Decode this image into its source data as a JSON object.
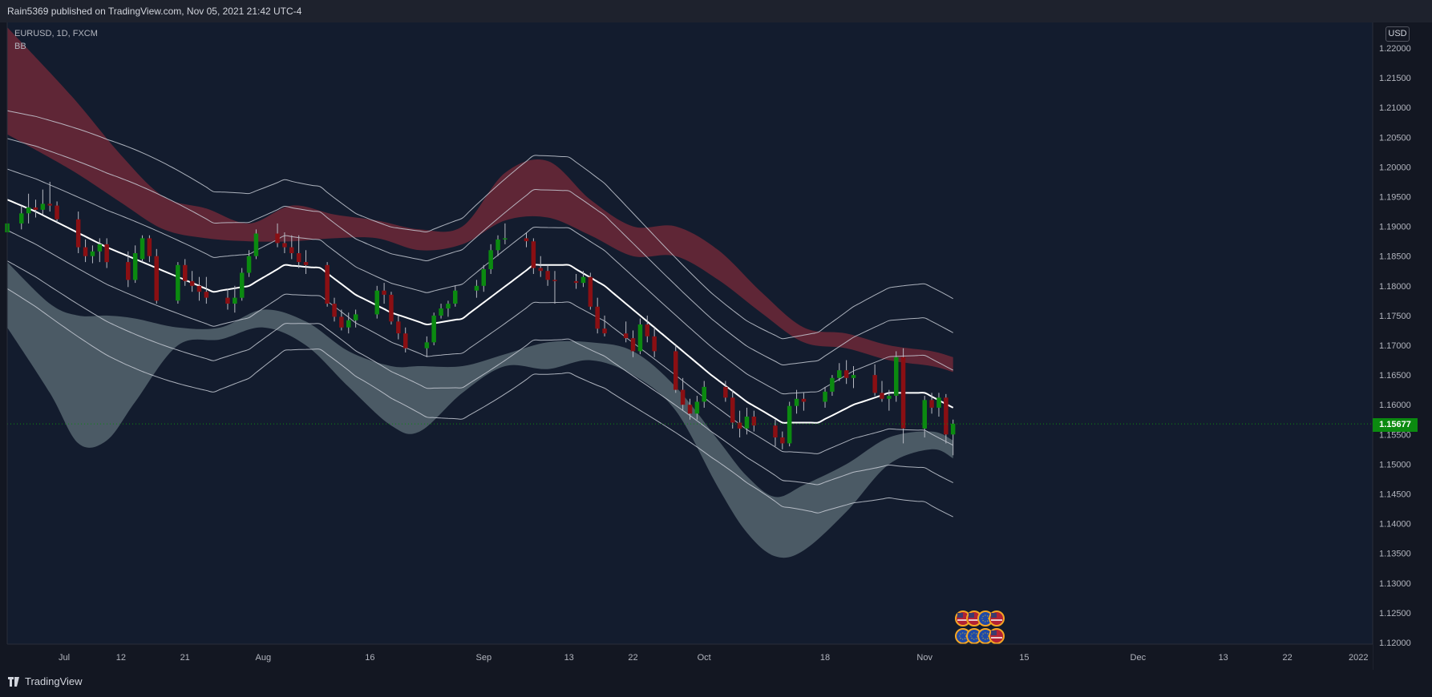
{
  "header": {
    "published": "Rain5369 published on TradingView.com, Nov 05, 2021 21:42 UTC-4"
  },
  "legend": {
    "symbol": "EURUSD, 1D, FXCM",
    "indicator": "BB"
  },
  "footer": {
    "brand": "TradingView"
  },
  "colors": {
    "up": "#0b8a10",
    "down": "#8a0f13",
    "background": "#131c2e",
    "upper_band": "#7a2a3a",
    "lower_band": "#5f6f78",
    "basis": "#ffffff"
  },
  "chart_data": {
    "type": "candlestick",
    "title": "EURUSD, 1D, FXCM",
    "currency": "USD",
    "last_price": "1.15677",
    "y_ticks": [
      "1.22000",
      "1.21500",
      "1.21000",
      "1.20500",
      "1.20000",
      "1.19500",
      "1.19000",
      "1.18500",
      "1.18000",
      "1.17500",
      "1.17000",
      "1.16500",
      "1.16000",
      "1.15500",
      "1.15000",
      "1.14500",
      "1.14000",
      "1.13500",
      "1.13000",
      "1.12500",
      "1.12000"
    ],
    "ylim": [
      1.12,
      1.22
    ],
    "x_labels": [
      {
        "label": "Jul",
        "day": 4
      },
      {
        "label": "12",
        "day": 12
      },
      {
        "label": "21",
        "day": 21
      },
      {
        "label": "Aug",
        "day": 32
      },
      {
        "label": "16",
        "day": 47
      },
      {
        "label": "Sep",
        "day": 63
      },
      {
        "label": "13",
        "day": 75
      },
      {
        "label": "22",
        "day": 84
      },
      {
        "label": "Oct",
        "day": 94
      },
      {
        "label": "18",
        "day": 111
      },
      {
        "label": "Nov",
        "day": 125
      },
      {
        "label": "15",
        "day": 139
      },
      {
        "label": "Dec",
        "day": 155
      },
      {
        "label": "13",
        "day": 167
      },
      {
        "label": "22",
        "day": 176
      },
      {
        "label": "2022",
        "day": 186
      }
    ],
    "xlim": [
      -4,
      188
    ],
    "candles": [
      [
        -4,
        1.189,
        1.1915,
        1.1885,
        1.1905
      ],
      [
        -2,
        1.1905,
        1.1935,
        1.1895,
        1.1922
      ],
      [
        -1,
        1.1922,
        1.1955,
        1.1905,
        1.1932
      ],
      [
        0,
        1.1932,
        1.1945,
        1.1915,
        1.1928
      ],
      [
        1,
        1.1928,
        1.1962,
        1.192,
        1.1938
      ],
      [
        2,
        1.1938,
        1.1975,
        1.1925,
        1.1935
      ],
      [
        3,
        1.1935,
        1.1942,
        1.1905,
        1.1912
      ],
      [
        6,
        1.1912,
        1.1925,
        1.1855,
        1.1865
      ],
      [
        7,
        1.1865,
        1.1878,
        1.184,
        1.185
      ],
      [
        8,
        1.185,
        1.1868,
        1.1838,
        1.1858
      ],
      [
        9,
        1.1858,
        1.188,
        1.184,
        1.187
      ],
      [
        10,
        1.187,
        1.188,
        1.183,
        1.184
      ],
      [
        13,
        1.184,
        1.1858,
        1.1798,
        1.181
      ],
      [
        14,
        1.181,
        1.1868,
        1.1805,
        1.1855
      ],
      [
        15,
        1.1845,
        1.1885,
        1.184,
        1.188
      ],
      [
        16,
        1.188,
        1.1885,
        1.184,
        1.185
      ],
      [
        17,
        1.185,
        1.1862,
        1.177,
        1.1775
      ],
      [
        20,
        1.1775,
        1.184,
        1.177,
        1.1835
      ],
      [
        21,
        1.1835,
        1.1845,
        1.18,
        1.1808
      ],
      [
        22,
        1.1808,
        1.1825,
        1.179,
        1.18
      ],
      [
        23,
        1.18,
        1.1815,
        1.1775,
        1.179
      ],
      [
        24,
        1.179,
        1.1815,
        1.177,
        1.178
      ],
      [
        27,
        1.178,
        1.1795,
        1.176,
        1.177
      ],
      [
        28,
        1.177,
        1.18,
        1.1755,
        1.178
      ],
      [
        29,
        1.178,
        1.183,
        1.1775,
        1.1822
      ],
      [
        30,
        1.1822,
        1.186,
        1.1815,
        1.185
      ],
      [
        31,
        1.185,
        1.1895,
        1.1845,
        1.1888
      ],
      [
        34,
        1.1888,
        1.1905,
        1.1865,
        1.1872
      ],
      [
        35,
        1.1872,
        1.189,
        1.1855,
        1.1865
      ],
      [
        36,
        1.1865,
        1.1885,
        1.1845,
        1.1855
      ],
      [
        37,
        1.1855,
        1.1885,
        1.183,
        1.184
      ],
      [
        38,
        1.184,
        1.186,
        1.182,
        1.1835
      ],
      [
        41,
        1.1835,
        1.184,
        1.1765,
        1.177
      ],
      [
        42,
        1.177,
        1.178,
        1.174,
        1.1748
      ],
      [
        43,
        1.1748,
        1.176,
        1.1725,
        1.173
      ],
      [
        44,
        1.173,
        1.1755,
        1.172,
        1.1742
      ],
      [
        45,
        1.1742,
        1.176,
        1.173,
        1.1752
      ],
      [
        48,
        1.1752,
        1.18,
        1.1745,
        1.1792
      ],
      [
        49,
        1.1792,
        1.1805,
        1.177,
        1.1785
      ],
      [
        50,
        1.1785,
        1.179,
        1.1735,
        1.174
      ],
      [
        51,
        1.174,
        1.175,
        1.171,
        1.172
      ],
      [
        52,
        1.172,
        1.173,
        1.1688,
        1.1695
      ],
      [
        55,
        1.1695,
        1.1715,
        1.168,
        1.1705
      ],
      [
        56,
        1.1705,
        1.1755,
        1.17,
        1.175
      ],
      [
        57,
        1.175,
        1.177,
        1.1745,
        1.1762
      ],
      [
        58,
        1.1762,
        1.1775,
        1.1748,
        1.177
      ],
      [
        59,
        1.177,
        1.18,
        1.1765,
        1.1792
      ],
      [
        62,
        1.1792,
        1.181,
        1.178,
        1.18
      ],
      [
        63,
        1.18,
        1.1835,
        1.179,
        1.1828
      ],
      [
        64,
        1.1828,
        1.187,
        1.182,
        1.186
      ],
      [
        65,
        1.186,
        1.1885,
        1.185,
        1.1878
      ],
      [
        66,
        1.1878,
        1.1905,
        1.187,
        1.188
      ],
      [
        69,
        1.188,
        1.189,
        1.1865,
        1.1875
      ],
      [
        70,
        1.1875,
        1.188,
        1.182,
        1.183
      ],
      [
        71,
        1.183,
        1.185,
        1.1815,
        1.1825
      ],
      [
        72,
        1.1825,
        1.1835,
        1.18,
        1.181
      ],
      [
        73,
        1.181,
        1.1825,
        1.177,
        1.1808
      ],
      [
        76,
        1.1808,
        1.182,
        1.1795,
        1.1805
      ],
      [
        77,
        1.1805,
        1.1825,
        1.1798,
        1.1815
      ],
      [
        78,
        1.1815,
        1.1822,
        1.176,
        1.1765
      ],
      [
        79,
        1.1765,
        1.178,
        1.172,
        1.1728
      ],
      [
        80,
        1.1728,
        1.175,
        1.1715,
        1.172
      ],
      [
        83,
        1.172,
        1.174,
        1.1705,
        1.1712
      ],
      [
        84,
        1.1712,
        1.1725,
        1.168,
        1.169
      ],
      [
        85,
        1.169,
        1.1745,
        1.1685,
        1.1735
      ],
      [
        86,
        1.1735,
        1.175,
        1.1705,
        1.1715
      ],
      [
        87,
        1.1715,
        1.173,
        1.168,
        1.169
      ],
      [
        90,
        1.169,
        1.17,
        1.162,
        1.1625
      ],
      [
        91,
        1.1625,
        1.1645,
        1.159,
        1.16
      ],
      [
        92,
        1.16,
        1.161,
        1.1575,
        1.1585
      ],
      [
        93,
        1.1585,
        1.1615,
        1.1575,
        1.1605
      ],
      [
        94,
        1.1605,
        1.164,
        1.1595,
        1.163
      ],
      [
        97,
        1.163,
        1.164,
        1.1605,
        1.1612
      ],
      [
        98,
        1.1612,
        1.1625,
        1.156,
        1.157
      ],
      [
        99,
        1.157,
        1.159,
        1.1545,
        1.156
      ],
      [
        100,
        1.156,
        1.1595,
        1.155,
        1.158
      ],
      [
        101,
        1.158,
        1.159,
        1.1555,
        1.1565
      ],
      [
        104,
        1.1565,
        1.1575,
        1.153,
        1.1545
      ],
      [
        105,
        1.1545,
        1.1555,
        1.1525,
        1.1535
      ],
      [
        106,
        1.1535,
        1.1605,
        1.153,
        1.1598
      ],
      [
        107,
        1.1598,
        1.1625,
        1.1585,
        1.161
      ],
      [
        108,
        1.161,
        1.162,
        1.159,
        1.1605
      ],
      [
        111,
        1.1605,
        1.163,
        1.1595,
        1.1622
      ],
      [
        112,
        1.1622,
        1.165,
        1.1615,
        1.1645
      ],
      [
        113,
        1.1645,
        1.167,
        1.164,
        1.1658
      ],
      [
        114,
        1.1658,
        1.1675,
        1.1635,
        1.1645
      ],
      [
        115,
        1.1645,
        1.1665,
        1.1628,
        1.165
      ],
      [
        118,
        1.165,
        1.1668,
        1.1615,
        1.162
      ],
      [
        119,
        1.162,
        1.164,
        1.1605,
        1.161
      ],
      [
        120,
        1.161,
        1.1625,
        1.159,
        1.1615
      ],
      [
        121,
        1.1615,
        1.169,
        1.1605,
        1.168
      ],
      [
        122,
        1.168,
        1.1695,
        1.1535,
        1.156
      ],
      [
        125,
        1.156,
        1.1615,
        1.1545,
        1.1608
      ],
      [
        126,
        1.1608,
        1.162,
        1.1585,
        1.1595
      ],
      [
        127,
        1.1595,
        1.162,
        1.158,
        1.1612
      ],
      [
        128,
        1.1612,
        1.1618,
        1.1535,
        1.155
      ],
      [
        129,
        1.155,
        1.1575,
        1.1515,
        1.1568
      ]
    ],
    "bands": {
      "days": [
        -4,
        0,
        5,
        10,
        15,
        20,
        25,
        30,
        35,
        40,
        45,
        50,
        55,
        60,
        65,
        70,
        75,
        80,
        85,
        90,
        95,
        100,
        105,
        110,
        115,
        120,
        125,
        129
      ],
      "basis": [
        1.1945,
        1.1925,
        1.1895,
        1.1865,
        1.184,
        1.1815,
        1.179,
        1.18,
        1.1835,
        1.183,
        1.1785,
        1.1755,
        1.1735,
        1.1745,
        1.179,
        1.1835,
        1.1835,
        1.18,
        1.175,
        1.17,
        1.165,
        1.1605,
        1.157,
        1.157,
        1.16,
        1.162,
        1.162,
        1.1595
      ],
      "offsets": [
        0.0055,
        0.011,
        0.016
      ],
      "upper_cloud": [
        [
          -4,
          1.2235,
          1.2055
        ],
        [
          5,
          1.212,
          1.1995
        ],
        [
          12,
          1.202,
          1.194
        ],
        [
          18,
          1.195,
          1.1895
        ],
        [
          24,
          1.193,
          1.188
        ],
        [
          30,
          1.1905,
          1.1875
        ],
        [
          36,
          1.1935,
          1.1875
        ],
        [
          42,
          1.192,
          1.188
        ],
        [
          48,
          1.191,
          1.188
        ],
        [
          54,
          1.1895,
          1.186
        ],
        [
          60,
          1.19,
          1.187
        ],
        [
          66,
          1.199,
          1.191
        ],
        [
          72,
          1.201,
          1.1915
        ],
        [
          78,
          1.1945,
          1.1885
        ],
        [
          84,
          1.19,
          1.185
        ],
        [
          90,
          1.19,
          1.185
        ],
        [
          96,
          1.186,
          1.181
        ],
        [
          102,
          1.179,
          1.1755
        ],
        [
          108,
          1.173,
          1.1705
        ],
        [
          114,
          1.172,
          1.1695
        ],
        [
          120,
          1.17,
          1.1675
        ],
        [
          126,
          1.169,
          1.1665
        ],
        [
          129,
          1.168,
          1.1655
        ]
      ],
      "lower_cloud": [
        [
          -4,
          1.184,
          1.173
        ],
        [
          2,
          1.177,
          1.162
        ],
        [
          6,
          1.175,
          1.1535
        ],
        [
          10,
          1.175,
          1.154
        ],
        [
          14,
          1.1745,
          1.1605
        ],
        [
          20,
          1.173,
          1.17
        ],
        [
          26,
          1.173,
          1.171
        ],
        [
          32,
          1.176,
          1.173
        ],
        [
          38,
          1.174,
          1.17
        ],
        [
          44,
          1.169,
          1.163
        ],
        [
          50,
          1.1665,
          1.1565
        ],
        [
          54,
          1.1665,
          1.1555
        ],
        [
          60,
          1.1665,
          1.162
        ],
        [
          66,
          1.1685,
          1.1665
        ],
        [
          72,
          1.1705,
          1.166
        ],
        [
          78,
          1.1705,
          1.1675
        ],
        [
          84,
          1.169,
          1.165
        ],
        [
          90,
          1.163,
          1.159
        ],
        [
          96,
          1.154,
          1.146
        ],
        [
          100,
          1.148,
          1.1385
        ],
        [
          104,
          1.1445,
          1.1345
        ],
        [
          108,
          1.1465,
          1.1355
        ],
        [
          114,
          1.15,
          1.142
        ],
        [
          120,
          1.1545,
          1.15
        ],
        [
          126,
          1.1555,
          1.1525
        ],
        [
          129,
          1.154,
          1.151
        ]
      ]
    },
    "events_rows": 2,
    "events_per_row": 4
  }
}
